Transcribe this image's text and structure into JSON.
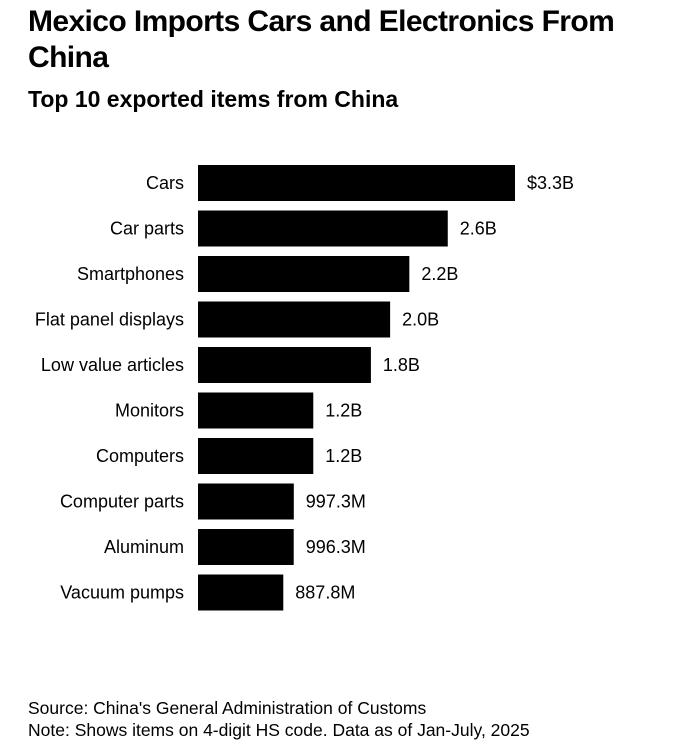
{
  "header": {
    "title": "Mexico Imports Cars and Electronics From China",
    "subtitle": "Top 10 exported items from China"
  },
  "footer": {
    "source": "Source: China's General Administration of Customs",
    "note": "Note: Shows items on 4-digit HS code. Data as of Jan-July, 2025"
  },
  "colors": {
    "bar": "#000000",
    "background": "#ffffff"
  },
  "chart_data": {
    "type": "bar",
    "orientation": "horizontal",
    "title": "Mexico Imports Cars and Electronics From China",
    "subtitle": "Top 10 exported items from China",
    "categories": [
      "Cars",
      "Car parts",
      "Smartphones",
      "Flat panel displays",
      "Low value articles",
      "Monitors",
      "Computers",
      "Computer parts",
      "Aluminum",
      "Vacuum pumps"
    ],
    "values": [
      3.3,
      2.6,
      2.2,
      2.0,
      1.8,
      1.2,
      1.2,
      0.9973,
      0.9963,
      0.8878
    ],
    "value_labels": [
      "$3.3B",
      "2.6B",
      "2.2B",
      "2.0B",
      "1.8B",
      "1.2B",
      "1.2B",
      "997.3M",
      "996.3M",
      "887.8M"
    ],
    "unit": "USD",
    "xlim": [
      0,
      3.3
    ],
    "grid": false,
    "legend": "none"
  }
}
